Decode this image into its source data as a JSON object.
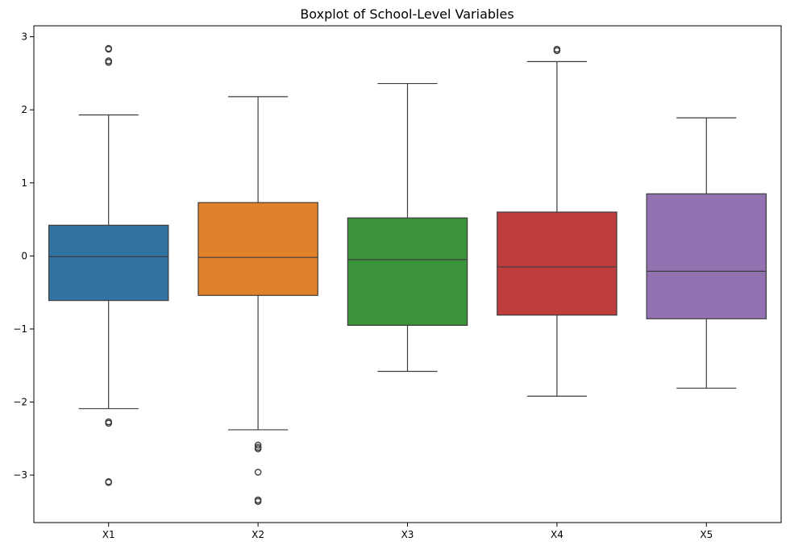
{
  "chart_data": {
    "type": "boxplot",
    "title": "Boxplot of School-Level Variables",
    "xlabel": "",
    "ylabel": "",
    "categories": [
      "X1",
      "X2",
      "X3",
      "X4",
      "X5"
    ],
    "y_ticks": [
      3,
      2,
      1,
      0,
      -1,
      -2,
      -3
    ],
    "y_tick_labels": [
      "3",
      "2",
      "1",
      "0",
      "−1",
      "−2",
      "−3"
    ],
    "ylim": [
      -3.65,
      3.15
    ],
    "grid": false,
    "series": [
      {
        "color": "#3274a1",
        "whisker_low": -2.09,
        "q1": -0.61,
        "median": -0.01,
        "q3": 0.42,
        "whisker_high": 1.93,
        "outliers": [
          2.84,
          2.83,
          2.67,
          2.65,
          -2.27,
          -2.29,
          -3.09,
          -3.1
        ]
      },
      {
        "color": "#e1812c",
        "whisker_low": -2.38,
        "q1": -0.54,
        "median": -0.02,
        "q3": 0.73,
        "whisker_high": 2.18,
        "outliers": [
          -2.59,
          -2.62,
          -2.64,
          -2.96,
          -3.34,
          -3.36
        ]
      },
      {
        "color": "#3a923a",
        "whisker_low": -1.58,
        "q1": -0.95,
        "median": -0.05,
        "q3": 0.52,
        "whisker_high": 2.36,
        "outliers": []
      },
      {
        "color": "#c03d3e",
        "whisker_low": -1.92,
        "q1": -0.81,
        "median": -0.15,
        "q3": 0.6,
        "whisker_high": 2.66,
        "outliers": [
          2.83,
          2.81
        ]
      },
      {
        "color": "#9372b2",
        "whisker_low": -1.81,
        "q1": -0.86,
        "median": -0.21,
        "q3": 0.85,
        "whisker_high": 1.89,
        "outliers": []
      }
    ]
  }
}
